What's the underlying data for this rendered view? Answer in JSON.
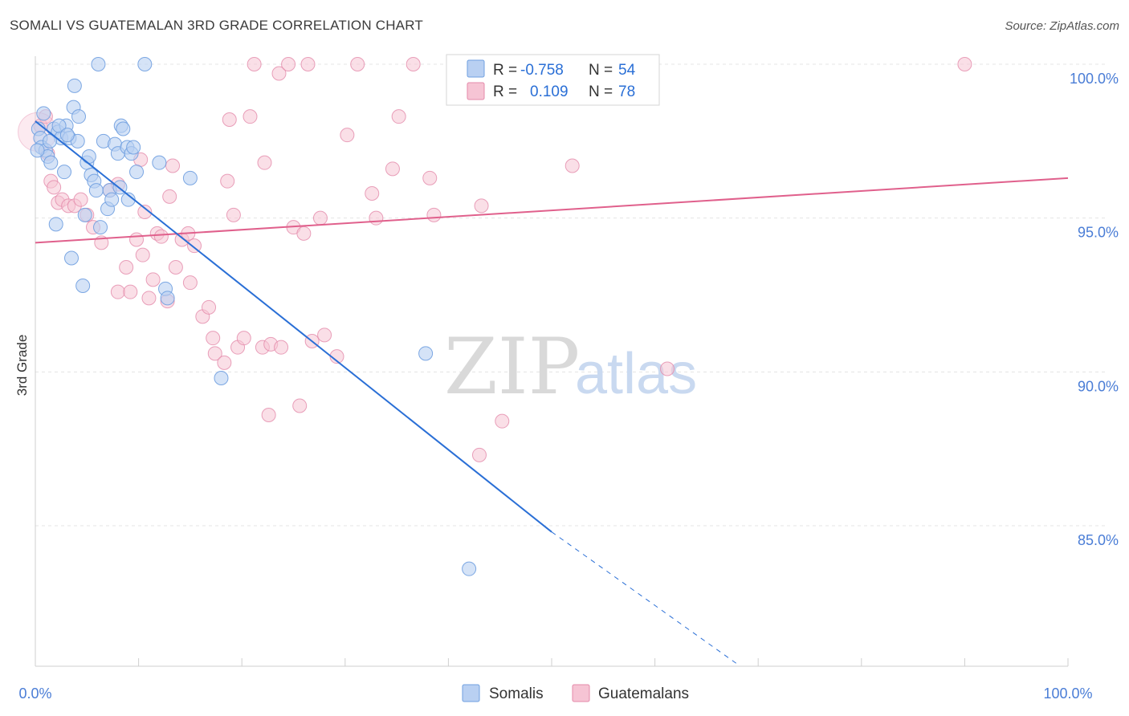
{
  "title": "SOMALI VS GUATEMALAN 3RD GRADE CORRELATION CHART",
  "source": "Source: ZipAtlas.com",
  "watermark": {
    "zip": "ZIP",
    "atlas": "atlas"
  },
  "colors": {
    "blue": "#6f9fe0",
    "blue_fill": "#b9d0f2",
    "blue_line": "#2a6fd6",
    "pink": "#e48aaa",
    "pink_fill": "#f6c4d4",
    "pink_line": "#e0608c",
    "tick": "#4a7dd6",
    "grid": "#e4e4e4"
  },
  "legend": {
    "rows": [
      {
        "r_label": "R =",
        "r_value": "-0.758",
        "n_label": "N =",
        "n_value": "54"
      },
      {
        "r_label": "R =",
        "r_value": "0.109",
        "n_label": "N =",
        "n_value": "78"
      }
    ]
  },
  "bottom_legend": [
    "Somalis",
    "Guatemalans"
  ],
  "chart_data": {
    "type": "scatter",
    "title": "SOMALI VS GUATEMALAN 3RD GRADE CORRELATION CHART",
    "xlabel": "",
    "ylabel": "3rd Grade",
    "xlim": [
      0,
      100
    ],
    "ylim": [
      80.5,
      100.8
    ],
    "x_tick_labels": [
      "0.0%",
      "100.0%"
    ],
    "y_ticks": [
      85,
      90,
      95,
      100
    ],
    "y_tick_labels": [
      "85.0%",
      "90.0%",
      "95.0%",
      "100.0%"
    ],
    "grid": true,
    "legend_position": "top-center",
    "series": [
      {
        "name": "Somalis",
        "color": "#6f9fe0",
        "R": -0.758,
        "N": 54,
        "trend": {
          "x0": 0,
          "y0": 98.15,
          "x1": 50,
          "y1": 84.8,
          "dash_to_x": 68,
          "dash_to_y": 80.5
        },
        "points": [
          [
            0.3,
            97.9
          ],
          [
            0.5,
            97.6
          ],
          [
            0.6,
            97.3
          ],
          [
            0.8,
            98.4
          ],
          [
            1.0,
            97.2
          ],
          [
            1.2,
            97.0
          ],
          [
            1.5,
            96.8
          ],
          [
            1.8,
            97.9
          ],
          [
            2.0,
            94.8
          ],
          [
            2.2,
            97.8
          ],
          [
            2.5,
            97.6
          ],
          [
            2.8,
            96.5
          ],
          [
            3.0,
            98.0
          ],
          [
            3.3,
            97.6
          ],
          [
            3.5,
            93.7
          ],
          [
            3.7,
            98.6
          ],
          [
            3.8,
            99.3
          ],
          [
            4.1,
            97.5
          ],
          [
            4.2,
            98.3
          ],
          [
            4.6,
            92.8
          ],
          [
            4.8,
            95.1
          ],
          [
            5.0,
            96.8
          ],
          [
            5.2,
            97.0
          ],
          [
            5.4,
            96.4
          ],
          [
            5.7,
            96.2
          ],
          [
            5.9,
            95.9
          ],
          [
            6.1,
            100.0
          ],
          [
            6.3,
            94.7
          ],
          [
            6.6,
            97.5
          ],
          [
            7.0,
            95.3
          ],
          [
            7.2,
            95.9
          ],
          [
            7.4,
            95.6
          ],
          [
            7.7,
            97.4
          ],
          [
            8.0,
            97.1
          ],
          [
            8.2,
            96.0
          ],
          [
            8.3,
            98.0
          ],
          [
            8.5,
            97.9
          ],
          [
            8.9,
            97.3
          ],
          [
            9.0,
            95.6
          ],
          [
            9.3,
            97.1
          ],
          [
            9.5,
            97.3
          ],
          [
            9.8,
            96.5
          ],
          [
            10.6,
            100.0
          ],
          [
            12.0,
            96.8
          ],
          [
            12.6,
            92.7
          ],
          [
            12.8,
            92.4
          ],
          [
            15.0,
            96.3
          ],
          [
            18.0,
            89.8
          ],
          [
            37.8,
            90.6
          ],
          [
            42.0,
            83.6
          ],
          [
            0.2,
            97.2
          ],
          [
            1.4,
            97.5
          ],
          [
            2.3,
            98.0
          ],
          [
            3.1,
            97.7
          ]
        ]
      },
      {
        "name": "Guatemalans",
        "color": "#e48aaa",
        "R": 0.109,
        "N": 78,
        "trend": {
          "x0": 0,
          "y0": 94.2,
          "x1": 100,
          "y1": 96.3
        },
        "points": [
          [
            0.5,
            98.0
          ],
          [
            1.0,
            98.3
          ],
          [
            1.2,
            97.1
          ],
          [
            1.5,
            96.2
          ],
          [
            1.8,
            96.0
          ],
          [
            2.2,
            95.5
          ],
          [
            2.6,
            95.6
          ],
          [
            3.2,
            95.4
          ],
          [
            3.8,
            95.4
          ],
          [
            4.4,
            95.6
          ],
          [
            5.0,
            95.1
          ],
          [
            5.6,
            94.7
          ],
          [
            6.4,
            94.2
          ],
          [
            7.2,
            95.9
          ],
          [
            8.0,
            96.1
          ],
          [
            8.0,
            92.6
          ],
          [
            8.8,
            93.4
          ],
          [
            9.2,
            92.6
          ],
          [
            9.8,
            94.3
          ],
          [
            10.4,
            93.8
          ],
          [
            10.6,
            95.2
          ],
          [
            11.0,
            92.4
          ],
          [
            11.4,
            93.0
          ],
          [
            11.8,
            94.5
          ],
          [
            12.2,
            94.4
          ],
          [
            12.8,
            92.3
          ],
          [
            13.0,
            95.7
          ],
          [
            13.3,
            96.7
          ],
          [
            13.6,
            93.4
          ],
          [
            14.2,
            94.3
          ],
          [
            14.8,
            94.5
          ],
          [
            15.0,
            92.9
          ],
          [
            15.4,
            94.1
          ],
          [
            16.2,
            91.8
          ],
          [
            16.8,
            92.1
          ],
          [
            17.2,
            91.1
          ],
          [
            17.4,
            90.6
          ],
          [
            18.3,
            90.3
          ],
          [
            18.6,
            96.2
          ],
          [
            18.8,
            98.2
          ],
          [
            19.2,
            95.1
          ],
          [
            19.6,
            90.8
          ],
          [
            20.2,
            91.1
          ],
          [
            21.2,
            100.0
          ],
          [
            22.0,
            90.8
          ],
          [
            22.2,
            96.8
          ],
          [
            22.6,
            88.6
          ],
          [
            22.8,
            90.9
          ],
          [
            23.6,
            99.7
          ],
          [
            23.8,
            90.8
          ],
          [
            24.5,
            100.0
          ],
          [
            25.0,
            94.7
          ],
          [
            25.6,
            88.9
          ],
          [
            26.0,
            94.5
          ],
          [
            26.4,
            100.0
          ],
          [
            26.8,
            91.0
          ],
          [
            27.6,
            95.0
          ],
          [
            28.0,
            91.2
          ],
          [
            29.2,
            90.5
          ],
          [
            30.2,
            97.7
          ],
          [
            31.2,
            100.0
          ],
          [
            32.6,
            95.8
          ],
          [
            33.0,
            95.0
          ],
          [
            34.6,
            96.6
          ],
          [
            35.2,
            98.3
          ],
          [
            36.6,
            100.0
          ],
          [
            38.2,
            96.3
          ],
          [
            38.6,
            95.1
          ],
          [
            41.2,
            100.0
          ],
          [
            43.0,
            87.3
          ],
          [
            43.2,
            95.4
          ],
          [
            45.2,
            88.4
          ],
          [
            52.0,
            96.7
          ],
          [
            57.4,
            100.0
          ],
          [
            61.2,
            90.1
          ],
          [
            90.0,
            100.0
          ],
          [
            20.8,
            98.3
          ],
          [
            10.2,
            96.9
          ]
        ]
      }
    ]
  }
}
